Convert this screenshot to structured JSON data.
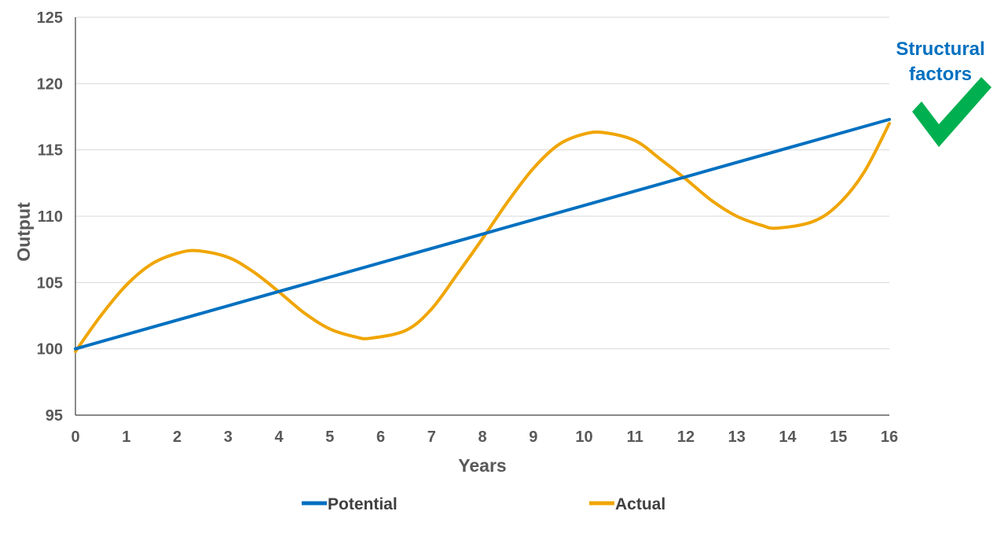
{
  "chart_data": {
    "type": "line",
    "xlabel": "Years",
    "ylabel": "Output",
    "xlim": [
      0,
      16
    ],
    "ylim": [
      95,
      125
    ],
    "x_ticks": [
      0,
      1,
      2,
      3,
      4,
      5,
      6,
      7,
      8,
      9,
      10,
      11,
      12,
      13,
      14,
      15,
      16
    ],
    "y_ticks": [
      95,
      100,
      105,
      110,
      115,
      120,
      125
    ],
    "grid": "horizontal",
    "legend_position": "bottom",
    "series": [
      {
        "name": "Potential",
        "color": "#0070C0",
        "x": [
          0,
          16
        ],
        "y": [
          100,
          117.3
        ]
      },
      {
        "name": "Actual",
        "color": "#F0A500",
        "x": [
          0,
          0.5,
          1,
          1.5,
          2,
          2.4,
          3,
          3.5,
          4,
          4.5,
          5,
          5.5,
          5.8,
          6.5,
          7,
          7.5,
          8,
          8.5,
          9,
          9.5,
          10,
          10.4,
          11,
          11.5,
          12,
          12.5,
          13,
          13.5,
          13.8,
          14.5,
          15,
          15.5,
          16
        ],
        "y": [
          99.8,
          102.5,
          104.8,
          106.4,
          107.2,
          107.4,
          106.9,
          105.8,
          104.3,
          102.7,
          101.5,
          100.9,
          100.8,
          101.4,
          103.0,
          105.6,
          108.3,
          111.1,
          113.6,
          115.4,
          116.2,
          116.3,
          115.7,
          114.3,
          112.8,
          111.2,
          110.0,
          109.3,
          109.1,
          109.6,
          110.9,
          113.3,
          117.0
        ]
      }
    ],
    "annotation": {
      "line1": "Structural",
      "line2": "factors",
      "text_color": "#0070C0",
      "check_color": "#00B050",
      "check_icon": "checkmark-icon"
    }
  }
}
